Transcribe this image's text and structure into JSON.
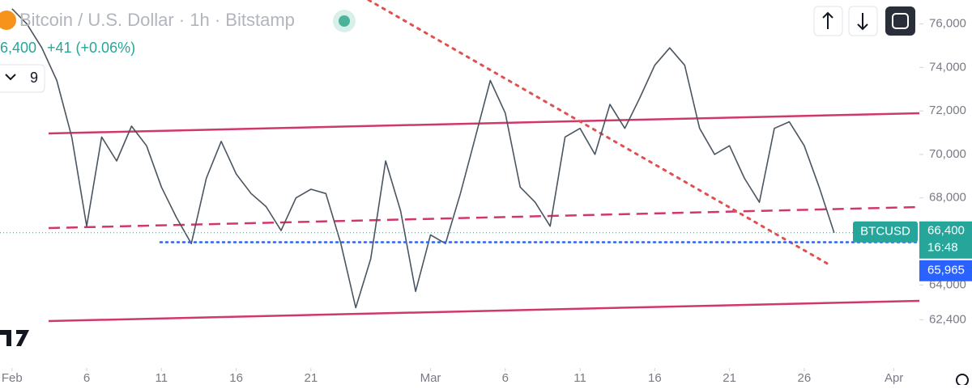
{
  "chart_data": {
    "type": "line",
    "title": "Bitcoin / U.S. Dollar · 1h · Bitstamp",
    "last_price": {
      "value": 66400,
      "label": "66,400"
    },
    "change": "+41 (+0.06%)",
    "indicator_count": 9,
    "symbol": "BTCUSD",
    "countdown": "16:48",
    "marker_price": {
      "value": 65965,
      "label": "65,965"
    },
    "color": "#4a5560",
    "x": [
      1,
      2,
      3,
      4,
      5,
      6,
      7,
      8,
      9,
      10,
      11,
      12,
      13,
      14,
      15,
      16,
      17,
      18,
      19,
      20,
      21,
      22,
      23,
      24,
      25,
      26,
      27,
      28,
      29,
      30,
      31,
      32,
      33,
      34,
      35,
      36,
      37,
      38,
      39,
      40,
      41,
      42,
      43,
      44,
      45,
      46,
      47,
      48,
      49,
      50,
      51,
      52,
      53,
      54,
      55,
      56
    ],
    "values": [
      76700,
      76000,
      74900,
      73400,
      70800,
      66700,
      70800,
      69700,
      71300,
      70400,
      68500,
      67100,
      65900,
      68900,
      70600,
      69100,
      68200,
      67600,
      66500,
      68000,
      68400,
      68200,
      65900,
      62950,
      65200,
      69700,
      67400,
      63700,
      66300,
      65900,
      68200,
      70800,
      73400,
      71900,
      68500,
      67800,
      66700,
      70800,
      71200,
      70000,
      72300,
      71200,
      72600,
      74100,
      74900,
      74100,
      71200,
      70000,
      70400,
      68900,
      67800,
      71200,
      71500,
      70400,
      68500,
      66400
    ],
    "xlim": [
      0.2,
      61.7
    ],
    "xticks": [
      {
        "value": 1,
        "label": "Feb"
      },
      6,
      11,
      16,
      21,
      {
        "value": 29,
        "label": "Mar"
      },
      {
        "value": 34,
        "label": "6"
      },
      {
        "value": 39,
        "label": "11"
      },
      {
        "value": 44,
        "label": "16"
      },
      {
        "value": 49,
        "label": "21"
      },
      {
        "value": 54,
        "label": "26"
      },
      {
        "value": 60,
        "label": "Apr"
      }
    ],
    "ylim": [
      59400,
      77100
    ],
    "yticks": [
      {
        "value": 76000,
        "label": "76,000"
      },
      {
        "value": 74000,
        "label": "74,000"
      },
      {
        "value": 72000,
        "label": "72,000"
      },
      {
        "value": 70000,
        "label": "70,000"
      },
      {
        "value": 68000,
        "label": "68,000"
      },
      {
        "value": 64000,
        "label": "64,000"
      },
      {
        "value": 62400,
        "label": "62,400"
      }
    ]
  }
}
